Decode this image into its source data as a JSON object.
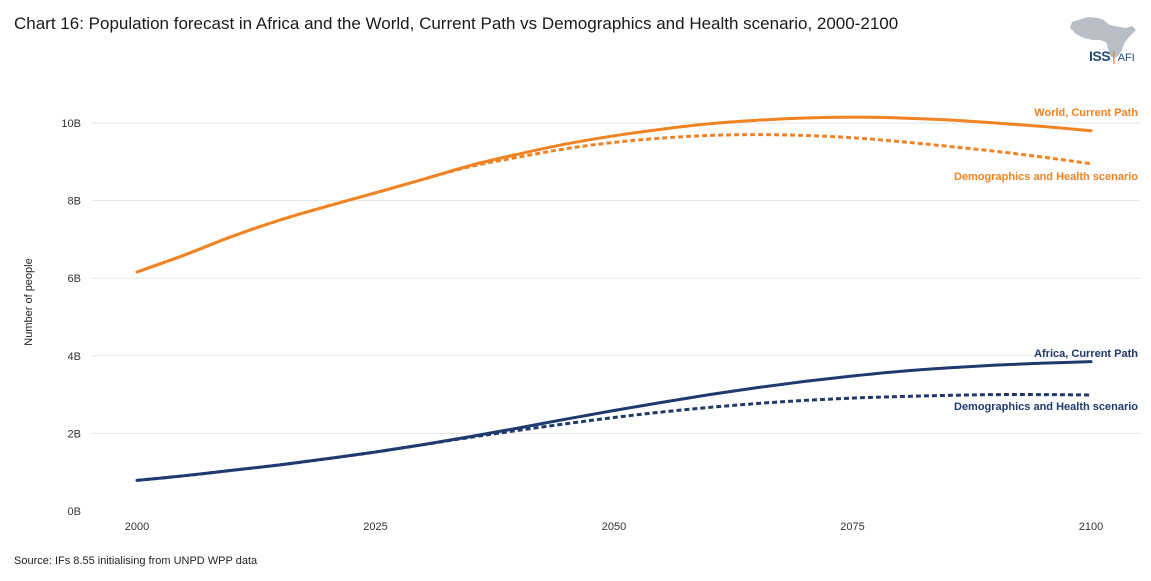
{
  "title": "Chart 16: Population forecast in Africa and the World, Current Path vs Demographics and Health scenario, 2000-2100",
  "source": "Source: IFs 8.55 initialising from UNPD WPP data",
  "logo": {
    "iss": "ISS",
    "sep": "|",
    "afi": "AFI"
  },
  "colors": {
    "world": "#f08323",
    "africa": "#1f3a6e",
    "grid": "#e6e6e6",
    "logo_map": "#b9bec6"
  },
  "chart_data": {
    "type": "line",
    "title": "Chart 16: Population forecast in Africa and the World, Current Path vs Demographics and Health scenario, 2000-2100",
    "xlabel": "",
    "ylabel": "Number of people",
    "xlim": [
      2000,
      2100
    ],
    "ylim": [
      0,
      10
    ],
    "x_ticks": [
      2000,
      2025,
      2050,
      2075,
      2100
    ],
    "x_tick_labels": [
      "2000",
      "2025",
      "2050",
      "2075",
      "2100"
    ],
    "y_ticks": [
      0,
      2,
      4,
      6,
      8,
      10
    ],
    "y_tick_labels": [
      "0B",
      "2B",
      "4B",
      "6B",
      "8B",
      "10B"
    ],
    "grid": true,
    "x": [
      2000,
      2005,
      2010,
      2015,
      2020,
      2025,
      2030,
      2035,
      2040,
      2045,
      2050,
      2055,
      2060,
      2065,
      2070,
      2075,
      2080,
      2085,
      2090,
      2095,
      2100
    ],
    "series": [
      {
        "name": "World, Current Path",
        "color_key": "world",
        "dashed": false,
        "values": [
          6.16,
          6.6,
          7.08,
          7.5,
          7.86,
          8.2,
          8.55,
          8.91,
          9.2,
          9.46,
          9.67,
          9.84,
          9.98,
          10.07,
          10.13,
          10.15,
          10.13,
          10.08,
          10.0,
          9.91,
          9.8
        ]
      },
      {
        "name": "Demographics and Health scenario",
        "color_key": "world",
        "dashed": true,
        "values": [
          6.16,
          6.6,
          7.08,
          7.5,
          7.86,
          8.2,
          8.55,
          8.88,
          9.12,
          9.34,
          9.5,
          9.61,
          9.68,
          9.7,
          9.68,
          9.62,
          9.52,
          9.4,
          9.27,
          9.12,
          8.95
        ]
      },
      {
        "name": "Africa, Current Path",
        "color_key": "africa",
        "dashed": false,
        "values": [
          0.79,
          0.91,
          1.05,
          1.19,
          1.35,
          1.52,
          1.71,
          1.92,
          2.14,
          2.37,
          2.59,
          2.8,
          3.0,
          3.18,
          3.34,
          3.48,
          3.6,
          3.69,
          3.76,
          3.81,
          3.85
        ]
      },
      {
        "name": "Demographics and Health scenario",
        "color_key": "africa",
        "dashed": true,
        "values": [
          0.79,
          0.91,
          1.05,
          1.19,
          1.35,
          1.52,
          1.71,
          1.9,
          2.08,
          2.25,
          2.41,
          2.55,
          2.67,
          2.77,
          2.85,
          2.91,
          2.95,
          2.98,
          3.0,
          3.0,
          2.99
        ]
      }
    ],
    "series_labels": [
      {
        "text": "World, Current Path",
        "color_key": "world"
      },
      {
        "text": "Demographics and Health scenario",
        "color_key": "world"
      },
      {
        "text": "Africa, Current Path",
        "color_key": "africa"
      },
      {
        "text": "Demographics and Health scenario",
        "color_key": "africa"
      }
    ]
  }
}
